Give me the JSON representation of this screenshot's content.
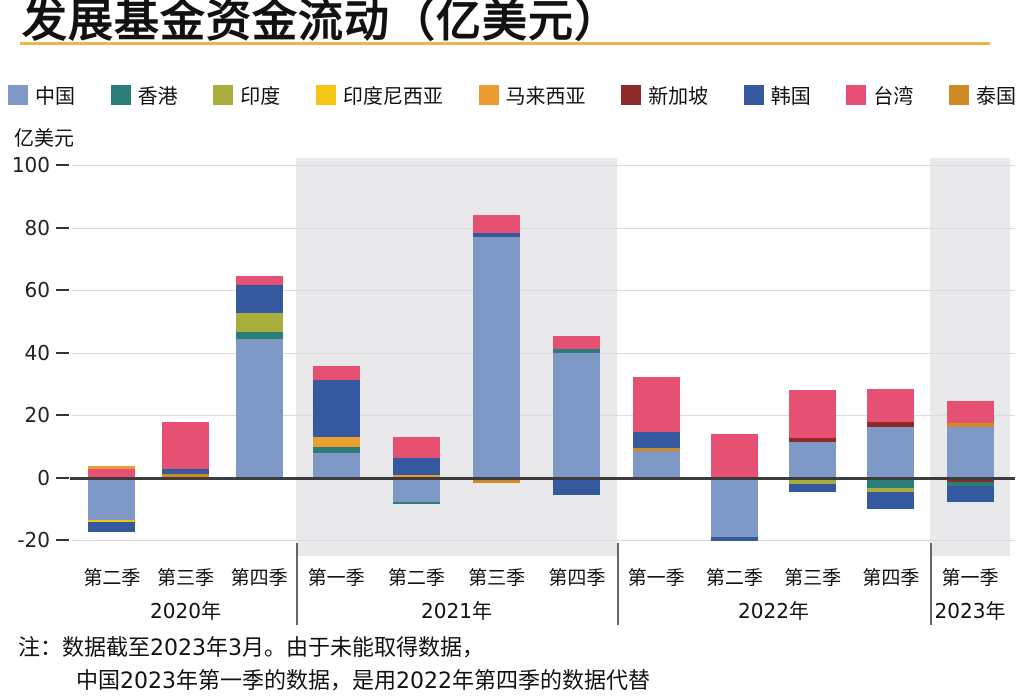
{
  "title": "发展基金资金流动（亿美元）",
  "unit_label": "亿美元",
  "note": {
    "line1": "注：数据截至2023年3月。由于未能取得数据，",
    "line2": "中国2023年第一季的数据，是用2022年第四季的数据代替"
  },
  "accent_colors": {
    "title_underline": "#f0b448",
    "group_shade": "#e9e9ec",
    "zero_line": "#3c3c3c"
  },
  "chart_data": {
    "type": "bar",
    "subtype": "stacked",
    "title": "发展基金资金流动（亿美元）",
    "ylabel": "亿美元",
    "ylim": [
      -20,
      100
    ],
    "y_ticks": [
      100,
      80,
      60,
      40,
      20,
      0,
      -20
    ],
    "grid": true,
    "legend_position": "top",
    "legend": [
      {
        "label": "中国",
        "color": "#7f99c6"
      },
      {
        "label": "香港",
        "color": "#2b7d77"
      },
      {
        "label": "印度",
        "color": "#a9ad3c"
      },
      {
        "label": "印度尼西亚",
        "color": "#f3c515"
      },
      {
        "label": "马来西亚",
        "color": "#ec9d2f"
      },
      {
        "label": "新加坡",
        "color": "#8e2a2a"
      },
      {
        "label": "韩国",
        "color": "#34599e"
      },
      {
        "label": "台湾",
        "color": "#e65072"
      },
      {
        "label": "泰国",
        "color": "#cf8a26"
      }
    ],
    "groups": [
      {
        "year": "2020年",
        "shaded": false,
        "bars": [
          {
            "quarter": "第二季",
            "segments": [
              {
                "country": "台湾",
                "value": 3
              },
              {
                "country": "马来西亚",
                "value": 1
              },
              {
                "country": "中国",
                "value": -13
              },
              {
                "country": "印度尼西亚",
                "value": -0.7
              },
              {
                "country": "韩国",
                "value": -3.3
              }
            ]
          },
          {
            "quarter": "第三季",
            "segments": [
              {
                "country": "泰国",
                "value": 1.2
              },
              {
                "country": "韩国",
                "value": 1.6
              },
              {
                "country": "台湾",
                "value": 15
              }
            ]
          },
          {
            "quarter": "第四季",
            "segments": [
              {
                "country": "中国",
                "value": 44.5
              },
              {
                "country": "香港",
                "value": 2.2
              },
              {
                "country": "印度",
                "value": 6
              },
              {
                "country": "韩国",
                "value": 9
              },
              {
                "country": "台湾",
                "value": 3
              }
            ]
          }
        ]
      },
      {
        "year": "2021年",
        "shaded": true,
        "bars": [
          {
            "quarter": "第一季",
            "segments": [
              {
                "country": "中国",
                "value": 8
              },
              {
                "country": "香港",
                "value": 2
              },
              {
                "country": "马来西亚",
                "value": 3.2
              },
              {
                "country": "韩国",
                "value": 18.3
              },
              {
                "country": "台湾",
                "value": 4.5
              }
            ]
          },
          {
            "quarter": "第二季",
            "segments": [
              {
                "country": "马来西亚",
                "value": 1
              },
              {
                "country": "韩国",
                "value": 5.5
              },
              {
                "country": "台湾",
                "value": 6.5
              },
              {
                "country": "中国",
                "value": -7.5
              },
              {
                "country": "香港",
                "value": -0.6
              }
            ]
          },
          {
            "quarter": "第三季",
            "segments": [
              {
                "country": "中国",
                "value": 77
              },
              {
                "country": "韩国",
                "value": 1.3
              },
              {
                "country": "台湾",
                "value": 6
              },
              {
                "country": "泰国",
                "value": -1.2
              }
            ]
          },
          {
            "quarter": "第四季",
            "segments": [
              {
                "country": "中国",
                "value": 40
              },
              {
                "country": "香港",
                "value": 1.4
              },
              {
                "country": "台湾",
                "value": 4
              },
              {
                "country": "韩国",
                "value": -5
              }
            ]
          }
        ]
      },
      {
        "year": "2022年",
        "shaded": false,
        "bars": [
          {
            "quarter": "第一季",
            "segments": [
              {
                "country": "中国",
                "value": 8.5
              },
              {
                "country": "泰国",
                "value": 1.2
              },
              {
                "country": "韩国",
                "value": 5
              },
              {
                "country": "台湾",
                "value": 17.5
              }
            ]
          },
          {
            "quarter": "第二季",
            "segments": [
              {
                "country": "台湾",
                "value": 14.2
              },
              {
                "country": "中国",
                "value": -18.5
              },
              {
                "country": "韩国",
                "value": -1.3
              }
            ]
          },
          {
            "quarter": "第三季",
            "segments": [
              {
                "country": "中国",
                "value": 11.5
              },
              {
                "country": "新加坡",
                "value": 1.3
              },
              {
                "country": "台湾",
                "value": 15.5
              },
              {
                "country": "印度",
                "value": -1.5
              },
              {
                "country": "韩国",
                "value": -2.5
              }
            ]
          },
          {
            "quarter": "第四季",
            "segments": [
              {
                "country": "中国",
                "value": 16.3
              },
              {
                "country": "新加坡",
                "value": 1.7
              },
              {
                "country": "台湾",
                "value": 10.5
              },
              {
                "country": "香港",
                "value": -3
              },
              {
                "country": "印度",
                "value": -1
              },
              {
                "country": "韩国",
                "value": -5.5
              }
            ]
          }
        ]
      },
      {
        "year": "2023年",
        "shaded": true,
        "bars": [
          {
            "quarter": "第一季",
            "segments": [
              {
                "country": "中国",
                "value": 16.3
              },
              {
                "country": "泰国",
                "value": 1.3
              },
              {
                "country": "台湾",
                "value": 7
              },
              {
                "country": "新加坡",
                "value": -1
              },
              {
                "country": "香港",
                "value": -1.2
              },
              {
                "country": "韩国",
                "value": -5
              }
            ]
          }
        ]
      }
    ]
  }
}
